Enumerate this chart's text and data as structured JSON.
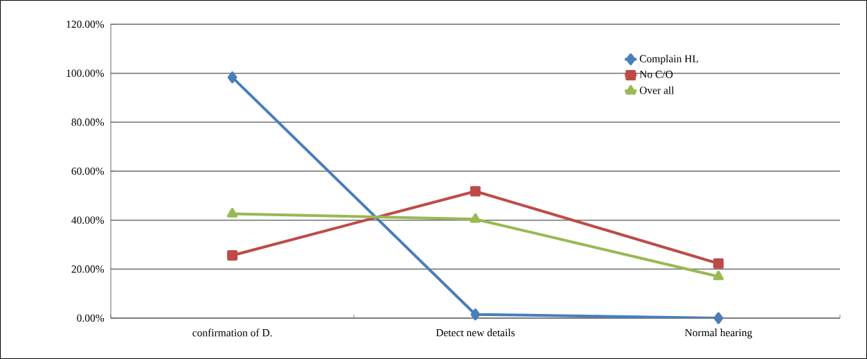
{
  "chart_data": {
    "type": "line",
    "categories": [
      "confirmation of D.",
      "Detect new details",
      "Normal hearing"
    ],
    "series": [
      {
        "name": "Complain HL",
        "color": "#4a7ebb",
        "marker": "diamond",
        "values": [
          98.3,
          1.5,
          0
        ]
      },
      {
        "name": "No C/O",
        "color": "#be4b48",
        "marker": "square",
        "values": [
          25.6,
          51.8,
          22.3
        ]
      },
      {
        "name": "Over all",
        "color": "#98b954",
        "marker": "triangle",
        "values": [
          42.6,
          40.4,
          17.0
        ]
      }
    ],
    "ylim": [
      0,
      120
    ],
    "yticks": [
      {
        "value": 0,
        "label": "0.00%"
      },
      {
        "value": 20,
        "label": "20.00%"
      },
      {
        "value": 40,
        "label": "40.00%"
      },
      {
        "value": 60,
        "label": "60.00%"
      },
      {
        "value": 80,
        "label": "80.00%"
      },
      {
        "value": 100,
        "label": "100.00%"
      },
      {
        "value": 120,
        "label": "120.00%"
      }
    ],
    "grid": "y",
    "legend": "top right",
    "line_style": "solid"
  }
}
